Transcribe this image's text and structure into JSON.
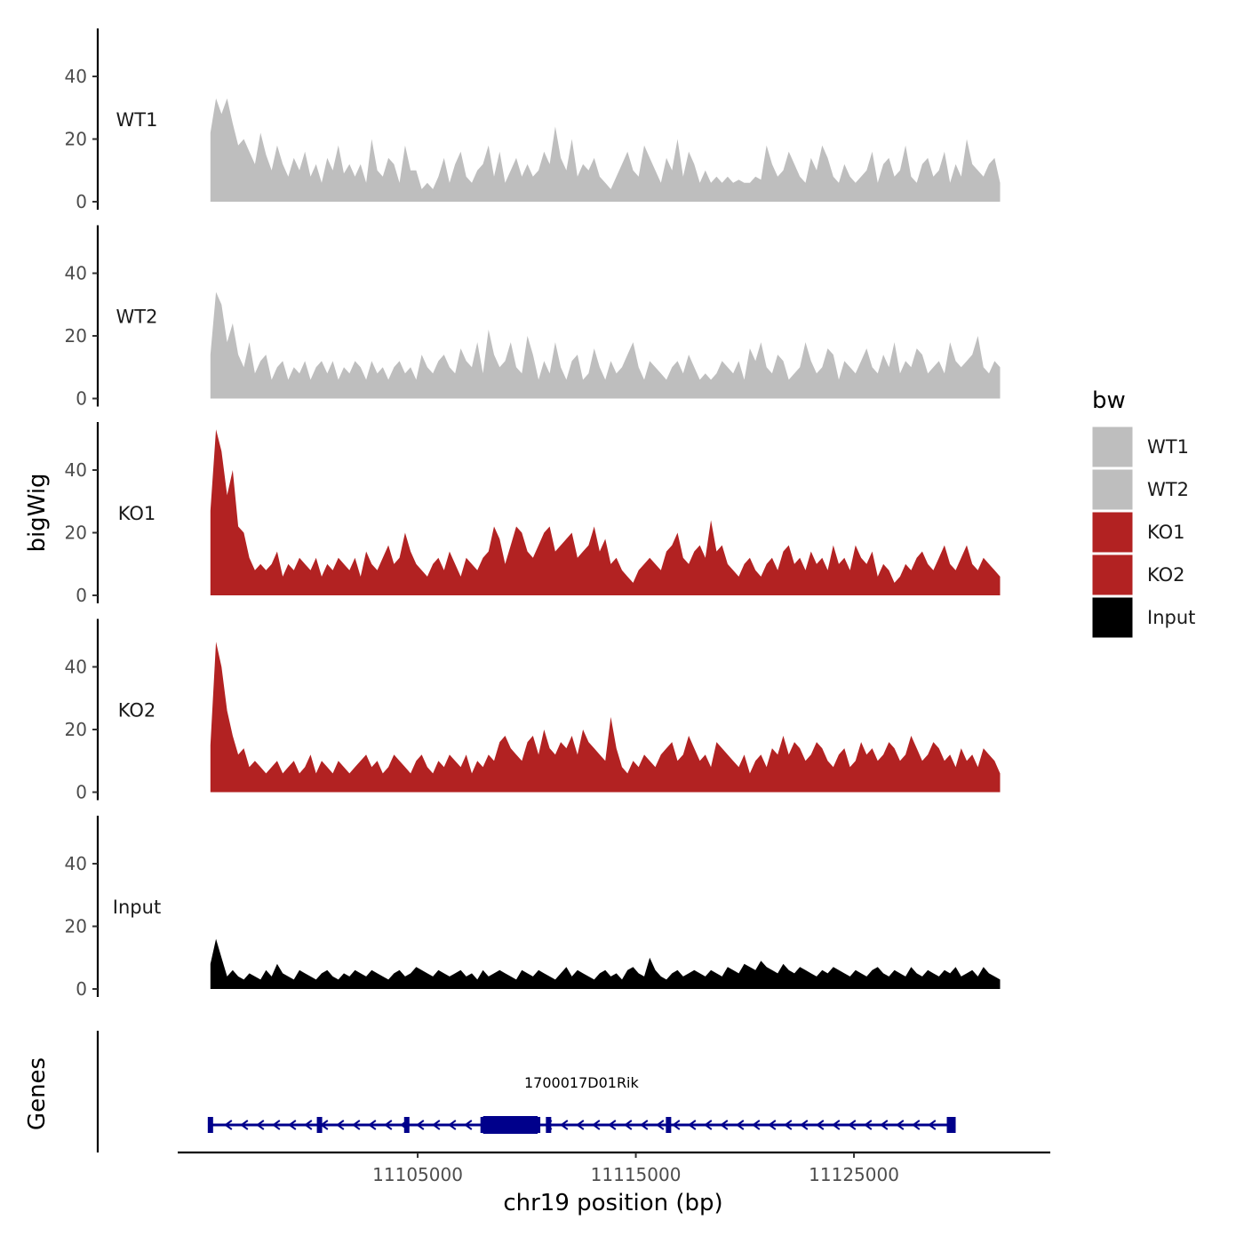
{
  "chart_data": {
    "type": "area",
    "ylabel": "bigWig",
    "xlabel": "chr19 position (bp)",
    "ylim": [
      0,
      55
    ],
    "yticks": [
      0,
      20,
      40
    ],
    "xlim": [
      11094000,
      11134000
    ],
    "xticks": [
      11105000,
      11115000,
      11125000
    ],
    "x_start": 11095500,
    "x_end": 11131700,
    "legend": {
      "title": "bw",
      "position": "right",
      "items": [
        {
          "label": "WT1",
          "color": "#bebebe"
        },
        {
          "label": "WT2",
          "color": "#bebebe"
        },
        {
          "label": "KO1",
          "color": "#b22222"
        },
        {
          "label": "KO2",
          "color": "#b22222"
        },
        {
          "label": "Input",
          "color": "#000000"
        }
      ]
    },
    "series": [
      {
        "name": "WT1",
        "color": "#bebebe",
        "values": [
          22,
          33,
          28,
          33,
          25,
          18,
          20,
          16,
          12,
          22,
          15,
          10,
          18,
          12,
          8,
          14,
          10,
          16,
          8,
          12,
          6,
          14,
          10,
          18,
          9,
          12,
          8,
          12,
          6,
          20,
          10,
          8,
          14,
          12,
          6,
          18,
          10,
          10,
          4,
          6,
          4,
          8,
          14,
          6,
          12,
          16,
          8,
          6,
          10,
          12,
          18,
          8,
          16,
          6,
          10,
          14,
          8,
          12,
          8,
          10,
          16,
          12,
          24,
          14,
          10,
          20,
          8,
          12,
          10,
          14,
          8,
          6,
          4,
          8,
          12,
          16,
          10,
          8,
          18,
          14,
          10,
          6,
          14,
          10,
          20,
          8,
          16,
          12,
          6,
          10,
          6,
          8,
          6,
          8,
          6,
          7,
          6,
          6,
          8,
          7,
          18,
          12,
          8,
          10,
          16,
          12,
          8,
          6,
          14,
          10,
          18,
          14,
          8,
          6,
          12,
          8,
          6,
          8,
          10,
          16,
          6,
          12,
          14,
          8,
          10,
          18,
          8,
          6,
          12,
          14,
          8,
          10,
          16,
          6,
          12,
          8,
          20,
          12,
          10,
          8,
          12,
          14,
          6
        ]
      },
      {
        "name": "WT2",
        "color": "#bebebe",
        "values": [
          14,
          34,
          30,
          18,
          24,
          14,
          10,
          18,
          8,
          12,
          14,
          6,
          10,
          12,
          6,
          10,
          8,
          12,
          6,
          10,
          12,
          8,
          12,
          6,
          10,
          8,
          12,
          10,
          6,
          12,
          8,
          10,
          6,
          10,
          12,
          8,
          10,
          6,
          14,
          10,
          8,
          12,
          14,
          10,
          8,
          16,
          12,
          10,
          18,
          8,
          22,
          14,
          10,
          12,
          18,
          10,
          8,
          20,
          14,
          6,
          12,
          8,
          18,
          10,
          6,
          12,
          14,
          6,
          8,
          16,
          10,
          6,
          12,
          8,
          10,
          14,
          18,
          10,
          6,
          12,
          10,
          8,
          6,
          10,
          12,
          8,
          14,
          10,
          6,
          8,
          6,
          8,
          12,
          10,
          8,
          12,
          6,
          16,
          12,
          18,
          10,
          8,
          14,
          12,
          6,
          8,
          10,
          18,
          12,
          8,
          10,
          16,
          14,
          6,
          12,
          10,
          8,
          12,
          16,
          10,
          8,
          14,
          10,
          18,
          8,
          12,
          10,
          16,
          14,
          8,
          10,
          12,
          8,
          18,
          12,
          10,
          12,
          14,
          20,
          10,
          8,
          12,
          10
        ]
      },
      {
        "name": "KO1",
        "color": "#b22222",
        "values": [
          27,
          53,
          46,
          32,
          40,
          22,
          20,
          12,
          8,
          10,
          8,
          10,
          14,
          6,
          10,
          8,
          12,
          10,
          8,
          12,
          6,
          10,
          8,
          12,
          10,
          8,
          12,
          6,
          14,
          10,
          8,
          12,
          16,
          10,
          12,
          20,
          14,
          10,
          8,
          6,
          10,
          12,
          8,
          14,
          10,
          6,
          12,
          10,
          8,
          12,
          14,
          22,
          18,
          10,
          16,
          22,
          20,
          14,
          12,
          16,
          20,
          22,
          14,
          16,
          18,
          20,
          12,
          14,
          16,
          22,
          14,
          18,
          10,
          12,
          8,
          6,
          4,
          8,
          10,
          12,
          10,
          8,
          14,
          16,
          20,
          12,
          10,
          14,
          16,
          12,
          24,
          14,
          16,
          10,
          8,
          6,
          10,
          12,
          8,
          6,
          10,
          12,
          8,
          14,
          16,
          10,
          12,
          8,
          14,
          10,
          12,
          8,
          16,
          10,
          12,
          8,
          16,
          12,
          10,
          14,
          6,
          10,
          8,
          4,
          6,
          10,
          8,
          12,
          14,
          10,
          8,
          12,
          16,
          10,
          8,
          12,
          16,
          10,
          8,
          12,
          10,
          8,
          6
        ]
      },
      {
        "name": "KO2",
        "color": "#b22222",
        "values": [
          15,
          48,
          40,
          26,
          18,
          12,
          14,
          8,
          10,
          8,
          6,
          8,
          10,
          6,
          8,
          10,
          6,
          8,
          12,
          6,
          10,
          8,
          6,
          10,
          8,
          6,
          8,
          10,
          12,
          8,
          10,
          6,
          8,
          12,
          10,
          8,
          6,
          10,
          12,
          8,
          6,
          10,
          8,
          12,
          10,
          8,
          12,
          6,
          10,
          8,
          12,
          10,
          16,
          18,
          14,
          12,
          10,
          16,
          18,
          12,
          20,
          14,
          12,
          16,
          14,
          18,
          12,
          20,
          16,
          14,
          12,
          10,
          24,
          14,
          8,
          6,
          10,
          8,
          12,
          10,
          8,
          12,
          14,
          16,
          10,
          12,
          18,
          14,
          10,
          12,
          8,
          16,
          14,
          12,
          10,
          8,
          12,
          6,
          10,
          12,
          8,
          14,
          12,
          18,
          12,
          16,
          14,
          10,
          12,
          16,
          14,
          10,
          8,
          12,
          14,
          8,
          10,
          16,
          12,
          14,
          10,
          12,
          16,
          14,
          10,
          12,
          18,
          14,
          10,
          12,
          16,
          14,
          10,
          12,
          8,
          14,
          10,
          12,
          8,
          14,
          12,
          10,
          6
        ]
      },
      {
        "name": "Input",
        "color": "#000000",
        "values": [
          8,
          16,
          10,
          4,
          6,
          4,
          3,
          5,
          4,
          3,
          6,
          4,
          8,
          5,
          4,
          3,
          6,
          5,
          4,
          3,
          5,
          6,
          4,
          3,
          5,
          4,
          6,
          5,
          4,
          6,
          5,
          4,
          3,
          5,
          6,
          4,
          5,
          7,
          6,
          5,
          4,
          6,
          5,
          4,
          5,
          6,
          4,
          5,
          3,
          6,
          4,
          5,
          6,
          5,
          4,
          3,
          6,
          5,
          4,
          6,
          5,
          4,
          3,
          5,
          7,
          4,
          6,
          5,
          4,
          3,
          5,
          6,
          4,
          5,
          3,
          6,
          7,
          5,
          4,
          10,
          6,
          4,
          3,
          5,
          6,
          4,
          5,
          6,
          5,
          4,
          6,
          5,
          4,
          7,
          6,
          5,
          8,
          7,
          6,
          9,
          7,
          6,
          5,
          8,
          6,
          5,
          7,
          6,
          5,
          4,
          6,
          5,
          7,
          6,
          5,
          4,
          6,
          5,
          4,
          6,
          7,
          5,
          4,
          6,
          5,
          4,
          7,
          5,
          4,
          6,
          5,
          4,
          6,
          5,
          7,
          4,
          5,
          6,
          4,
          7,
          5,
          4,
          3
        ]
      }
    ],
    "tracks_label": "Genes",
    "gene": {
      "name": "1700017D01Rik",
      "strand": "-",
      "start": 11095500,
      "end": 11129500,
      "thick_start": 11108000,
      "thick_end": 11110500,
      "exons": [
        11095500,
        11100500,
        11104500,
        11108000,
        11110500,
        11111000,
        11116500,
        11129500
      ],
      "color": "#00008b"
    }
  }
}
